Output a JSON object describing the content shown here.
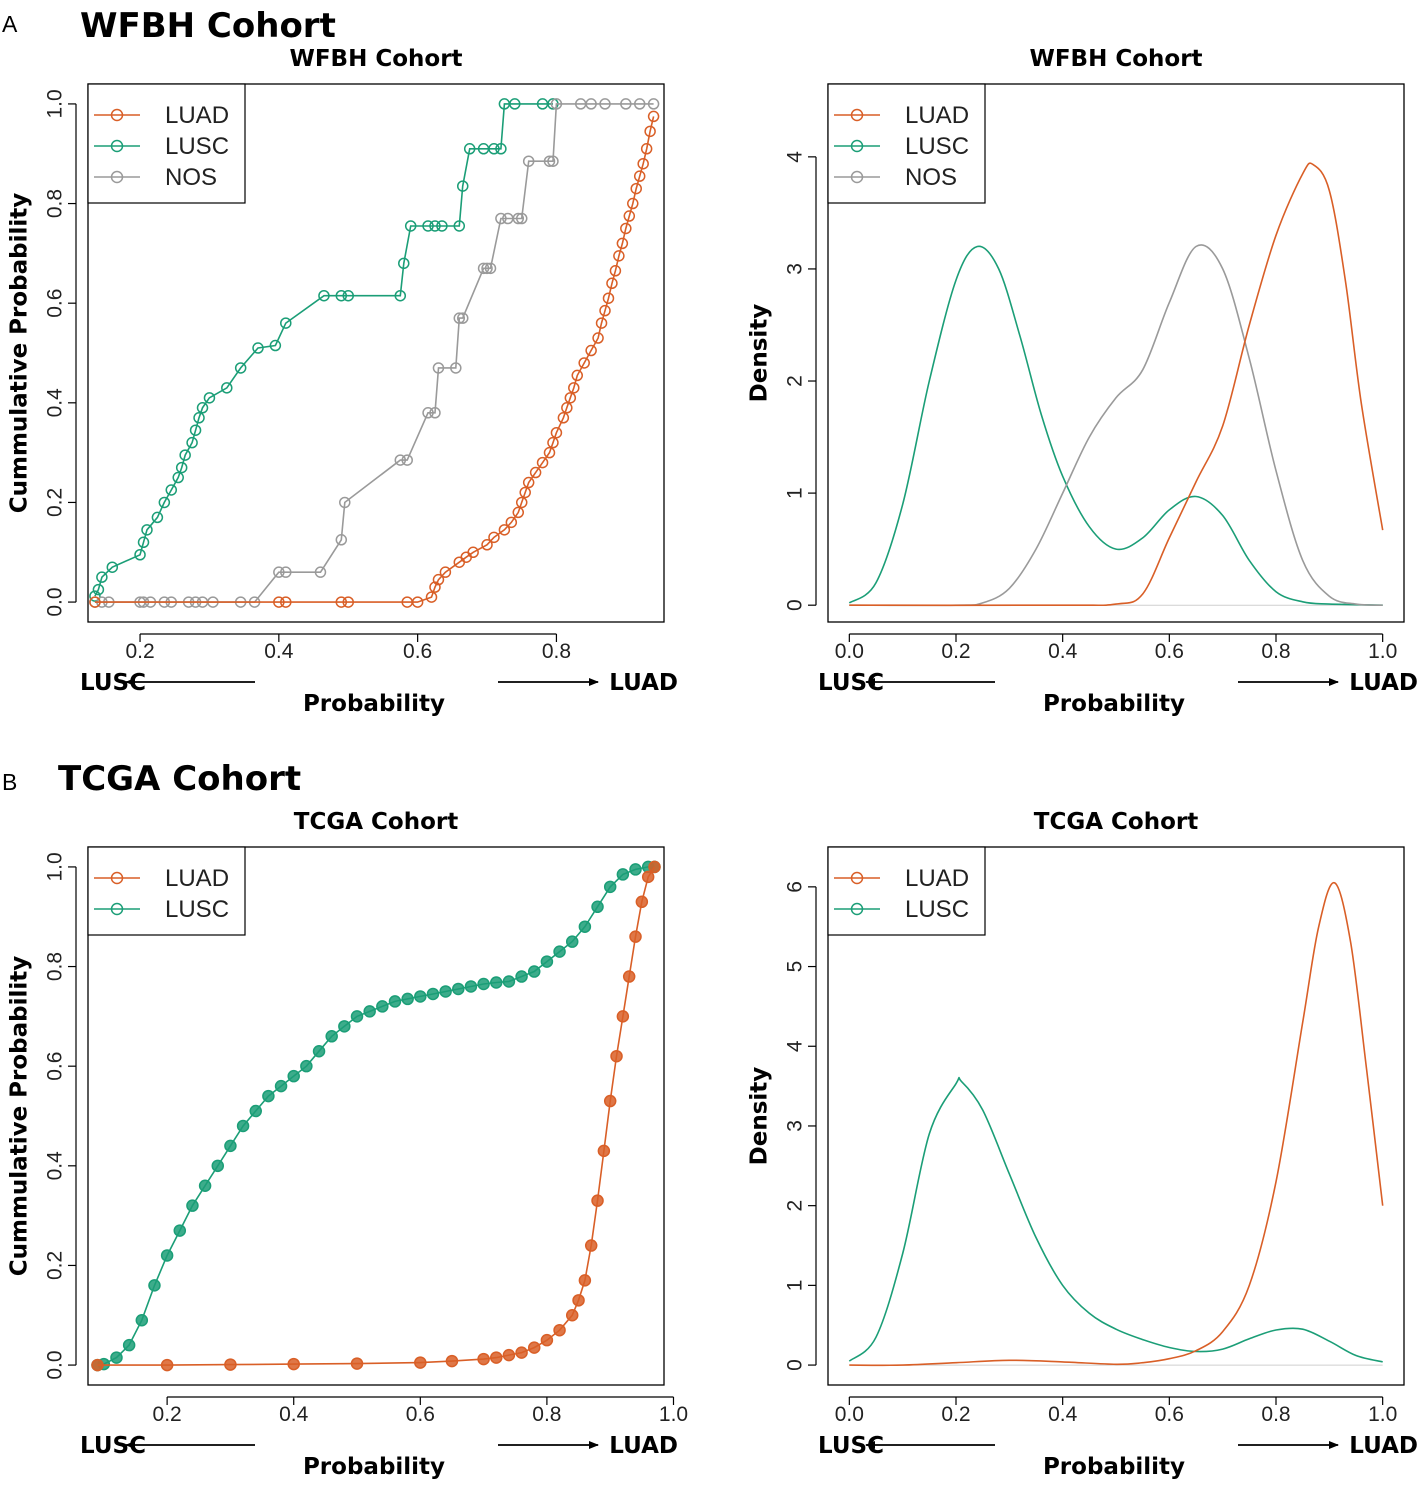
{
  "panels": [
    {
      "letter": "A",
      "title": "WFBH Cohort"
    },
    {
      "letter": "B",
      "title": "TCGA Cohort"
    }
  ],
  "colors": {
    "LUAD": "#d95f27",
    "LUSC": "#1b9e77",
    "NOS": "#9a9a9a"
  },
  "direction": {
    "left": "LUSC",
    "right": "LUAD"
  },
  "chart_data": [
    {
      "type": "line",
      "title": "WFBH Cohort",
      "xlabel": "Probability",
      "ylabel": "Cummulative Probability",
      "xlim": [
        0.125,
        0.955
      ],
      "ylim": [
        -0.04,
        1.04
      ],
      "xticks": [
        "0.2",
        "0.4",
        "0.6",
        "0.8"
      ],
      "yticks": [
        "0.0",
        "0.2",
        "0.4",
        "0.6",
        "0.8",
        "1.0"
      ],
      "legend": [
        "LUAD",
        "LUSC",
        "NOS"
      ],
      "legend_position": "top-left",
      "series": [
        {
          "name": "LUSC",
          "x": [
            0.135,
            0.14,
            0.145,
            0.16,
            0.2,
            0.205,
            0.21,
            0.225,
            0.235,
            0.245,
            0.255,
            0.26,
            0.265,
            0.275,
            0.28,
            0.285,
            0.29,
            0.3,
            0.325,
            0.345,
            0.37,
            0.395,
            0.41,
            0.465,
            0.49,
            0.5,
            0.575,
            0.58,
            0.59,
            0.615,
            0.625,
            0.635,
            0.66,
            0.665,
            0.675,
            0.695,
            0.71,
            0.72,
            0.725,
            0.74,
            0.78,
            0.795
          ],
          "y": [
            0.012,
            0.025,
            0.05,
            0.07,
            0.095,
            0.12,
            0.145,
            0.17,
            0.2,
            0.225,
            0.25,
            0.27,
            0.295,
            0.32,
            0.345,
            0.37,
            0.39,
            0.41,
            0.43,
            0.47,
            0.51,
            0.515,
            0.56,
            0.615,
            0.615,
            0.615,
            0.615,
            0.68,
            0.755,
            0.755,
            0.755,
            0.755,
            0.755,
            0.835,
            0.91,
            0.91,
            0.91,
            0.91,
            1.0,
            1.0,
            1.0,
            1.0
          ]
        },
        {
          "name": "NOS",
          "x": [
            0.135,
            0.145,
            0.155,
            0.2,
            0.205,
            0.215,
            0.235,
            0.245,
            0.27,
            0.28,
            0.29,
            0.305,
            0.345,
            0.365,
            0.4,
            0.41,
            0.46,
            0.49,
            0.495,
            0.575,
            0.585,
            0.615,
            0.625,
            0.63,
            0.655,
            0.66,
            0.665,
            0.695,
            0.7,
            0.705,
            0.72,
            0.73,
            0.745,
            0.75,
            0.76,
            0.79,
            0.795,
            0.8,
            0.835,
            0.85,
            0.87,
            0.9,
            0.92,
            0.94
          ],
          "y": [
            0,
            0,
            0,
            0,
            0,
            0,
            0,
            0,
            0,
            0,
            0,
            0,
            0,
            0,
            0.06,
            0.06,
            0.06,
            0.125,
            0.2,
            0.285,
            0.285,
            0.38,
            0.38,
            0.47,
            0.47,
            0.57,
            0.57,
            0.67,
            0.67,
            0.67,
            0.77,
            0.77,
            0.77,
            0.77,
            0.885,
            0.885,
            0.885,
            1.0,
            1.0,
            1.0,
            1.0,
            1.0,
            1.0,
            1.0
          ]
        },
        {
          "name": "LUAD",
          "x": [
            0.135,
            0.4,
            0.41,
            0.49,
            0.5,
            0.585,
            0.6,
            0.62,
            0.625,
            0.63,
            0.64,
            0.66,
            0.67,
            0.68,
            0.7,
            0.71,
            0.725,
            0.735,
            0.745,
            0.75,
            0.755,
            0.76,
            0.77,
            0.78,
            0.79,
            0.795,
            0.8,
            0.81,
            0.815,
            0.82,
            0.825,
            0.83,
            0.84,
            0.85,
            0.86,
            0.865,
            0.87,
            0.875,
            0.88,
            0.885,
            0.89,
            0.895,
            0.9,
            0.905,
            0.91,
            0.915,
            0.92,
            0.925,
            0.93,
            0.935,
            0.94
          ],
          "y": [
            0,
            0,
            0,
            0,
            0,
            0,
            0,
            0.01,
            0.03,
            0.045,
            0.06,
            0.08,
            0.09,
            0.1,
            0.115,
            0.13,
            0.145,
            0.16,
            0.18,
            0.2,
            0.22,
            0.24,
            0.26,
            0.28,
            0.3,
            0.32,
            0.34,
            0.37,
            0.39,
            0.41,
            0.43,
            0.455,
            0.48,
            0.505,
            0.53,
            0.56,
            0.585,
            0.61,
            0.64,
            0.665,
            0.695,
            0.72,
            0.75,
            0.775,
            0.8,
            0.83,
            0.855,
            0.88,
            0.91,
            0.945,
            0.975
          ]
        }
      ]
    },
    {
      "type": "line",
      "title": "WFBH Cohort",
      "xlabel": "Probability",
      "ylabel": "Density",
      "xlim": [
        -0.04,
        1.04
      ],
      "ylim": [
        -0.15,
        4.65
      ],
      "xticks": [
        "0.0",
        "0.2",
        "0.4",
        "0.6",
        "0.8",
        "1.0"
      ],
      "yticks": [
        "0",
        "1",
        "2",
        "3",
        "4"
      ],
      "legend": [
        "LUAD",
        "LUSC",
        "NOS"
      ],
      "legend_position": "top-left",
      "series": [
        {
          "name": "LUSC",
          "x": [
            0.0,
            0.05,
            0.1,
            0.15,
            0.2,
            0.24,
            0.28,
            0.32,
            0.36,
            0.4,
            0.45,
            0.5,
            0.55,
            0.6,
            0.65,
            0.7,
            0.75,
            0.8,
            0.85,
            0.9,
            1.0
          ],
          "y": [
            0.02,
            0.2,
            0.9,
            2.0,
            2.9,
            3.2,
            3.0,
            2.4,
            1.7,
            1.15,
            0.7,
            0.5,
            0.6,
            0.85,
            0.97,
            0.8,
            0.4,
            0.12,
            0.03,
            0.01,
            0.0
          ]
        },
        {
          "name": "NOS",
          "x": [
            0.0,
            0.2,
            0.25,
            0.3,
            0.35,
            0.4,
            0.45,
            0.5,
            0.55,
            0.6,
            0.65,
            0.7,
            0.75,
            0.8,
            0.85,
            0.9,
            0.95,
            1.0
          ],
          "y": [
            0.0,
            0.0,
            0.02,
            0.15,
            0.5,
            1.0,
            1.5,
            1.85,
            2.1,
            2.7,
            3.2,
            3.0,
            2.2,
            1.2,
            0.4,
            0.08,
            0.01,
            0.0
          ]
        },
        {
          "name": "LUAD",
          "x": [
            0.0,
            0.4,
            0.5,
            0.55,
            0.6,
            0.65,
            0.7,
            0.75,
            0.8,
            0.85,
            0.87,
            0.9,
            0.93,
            0.96,
            1.0
          ],
          "y": [
            0.0,
            0.0,
            0.01,
            0.1,
            0.6,
            1.1,
            1.6,
            2.5,
            3.3,
            3.85,
            3.93,
            3.7,
            2.9,
            1.8,
            0.67
          ]
        }
      ]
    },
    {
      "type": "line",
      "title": "TCGA Cohort",
      "xlabel": "Probability",
      "ylabel": "Cummulative Probability",
      "xlim": [
        0.075,
        0.985
      ],
      "ylim": [
        -0.04,
        1.04
      ],
      "xticks": [
        "0.2",
        "0.4",
        "0.6",
        "0.8",
        "1.0"
      ],
      "yticks": [
        "0.0",
        "0.2",
        "0.4",
        "0.6",
        "0.8",
        "1.0"
      ],
      "legend": [
        "LUAD",
        "LUSC"
      ],
      "legend_position": "top-left",
      "series": [
        {
          "name": "LUSC",
          "x": [
            0.09,
            0.1,
            0.12,
            0.14,
            0.16,
            0.18,
            0.2,
            0.22,
            0.24,
            0.26,
            0.28,
            0.3,
            0.32,
            0.34,
            0.36,
            0.38,
            0.4,
            0.42,
            0.44,
            0.46,
            0.48,
            0.5,
            0.52,
            0.54,
            0.56,
            0.58,
            0.6,
            0.62,
            0.64,
            0.66,
            0.68,
            0.7,
            0.72,
            0.74,
            0.76,
            0.78,
            0.8,
            0.82,
            0.84,
            0.86,
            0.88,
            0.9,
            0.92,
            0.94,
            0.96,
            0.97
          ],
          "y": [
            0.0,
            0.002,
            0.015,
            0.04,
            0.09,
            0.16,
            0.22,
            0.27,
            0.32,
            0.36,
            0.4,
            0.44,
            0.48,
            0.51,
            0.54,
            0.56,
            0.58,
            0.6,
            0.63,
            0.66,
            0.68,
            0.7,
            0.71,
            0.72,
            0.73,
            0.735,
            0.74,
            0.745,
            0.75,
            0.755,
            0.76,
            0.765,
            0.768,
            0.77,
            0.78,
            0.79,
            0.81,
            0.83,
            0.85,
            0.88,
            0.92,
            0.96,
            0.985,
            0.995,
            1.0,
            1.0
          ]
        },
        {
          "name": "LUAD",
          "x": [
            0.09,
            0.2,
            0.3,
            0.4,
            0.5,
            0.6,
            0.65,
            0.7,
            0.72,
            0.74,
            0.76,
            0.78,
            0.8,
            0.82,
            0.84,
            0.85,
            0.86,
            0.87,
            0.88,
            0.89,
            0.9,
            0.91,
            0.92,
            0.93,
            0.94,
            0.95,
            0.96,
            0.97
          ],
          "y": [
            0.0,
            0.0,
            0.001,
            0.002,
            0.003,
            0.005,
            0.008,
            0.012,
            0.015,
            0.02,
            0.025,
            0.035,
            0.05,
            0.07,
            0.1,
            0.13,
            0.17,
            0.24,
            0.33,
            0.43,
            0.53,
            0.62,
            0.7,
            0.78,
            0.86,
            0.93,
            0.98,
            1.0
          ]
        }
      ]
    },
    {
      "type": "line",
      "title": "TCGA Cohort",
      "xlabel": "Probability",
      "ylabel": "Density",
      "xlim": [
        -0.04,
        1.04
      ],
      "ylim": [
        -0.25,
        6.5
      ],
      "xticks": [
        "0.0",
        "0.2",
        "0.4",
        "0.6",
        "0.8",
        "1.0"
      ],
      "yticks": [
        "0",
        "1",
        "2",
        "3",
        "4",
        "5",
        "6"
      ],
      "legend": [
        "LUAD",
        "LUSC"
      ],
      "legend_position": "top-left",
      "series": [
        {
          "name": "LUSC",
          "x": [
            0.0,
            0.05,
            0.1,
            0.15,
            0.2,
            0.21,
            0.25,
            0.3,
            0.35,
            0.4,
            0.45,
            0.5,
            0.55,
            0.6,
            0.65,
            0.7,
            0.75,
            0.8,
            0.85,
            0.9,
            0.95,
            1.0
          ],
          "y": [
            0.05,
            0.35,
            1.4,
            2.9,
            3.53,
            3.56,
            3.2,
            2.4,
            1.6,
            1.0,
            0.65,
            0.45,
            0.32,
            0.22,
            0.17,
            0.2,
            0.33,
            0.44,
            0.45,
            0.3,
            0.12,
            0.04
          ]
        },
        {
          "name": "LUAD",
          "x": [
            0.0,
            0.1,
            0.2,
            0.3,
            0.4,
            0.5,
            0.55,
            0.6,
            0.65,
            0.7,
            0.75,
            0.8,
            0.85,
            0.88,
            0.91,
            0.94,
            0.97,
            1.0
          ],
          "y": [
            0.0,
            0.0,
            0.03,
            0.06,
            0.04,
            0.01,
            0.03,
            0.08,
            0.18,
            0.42,
            1.0,
            2.3,
            4.3,
            5.5,
            6.05,
            5.3,
            3.7,
            2.0
          ]
        }
      ]
    }
  ]
}
